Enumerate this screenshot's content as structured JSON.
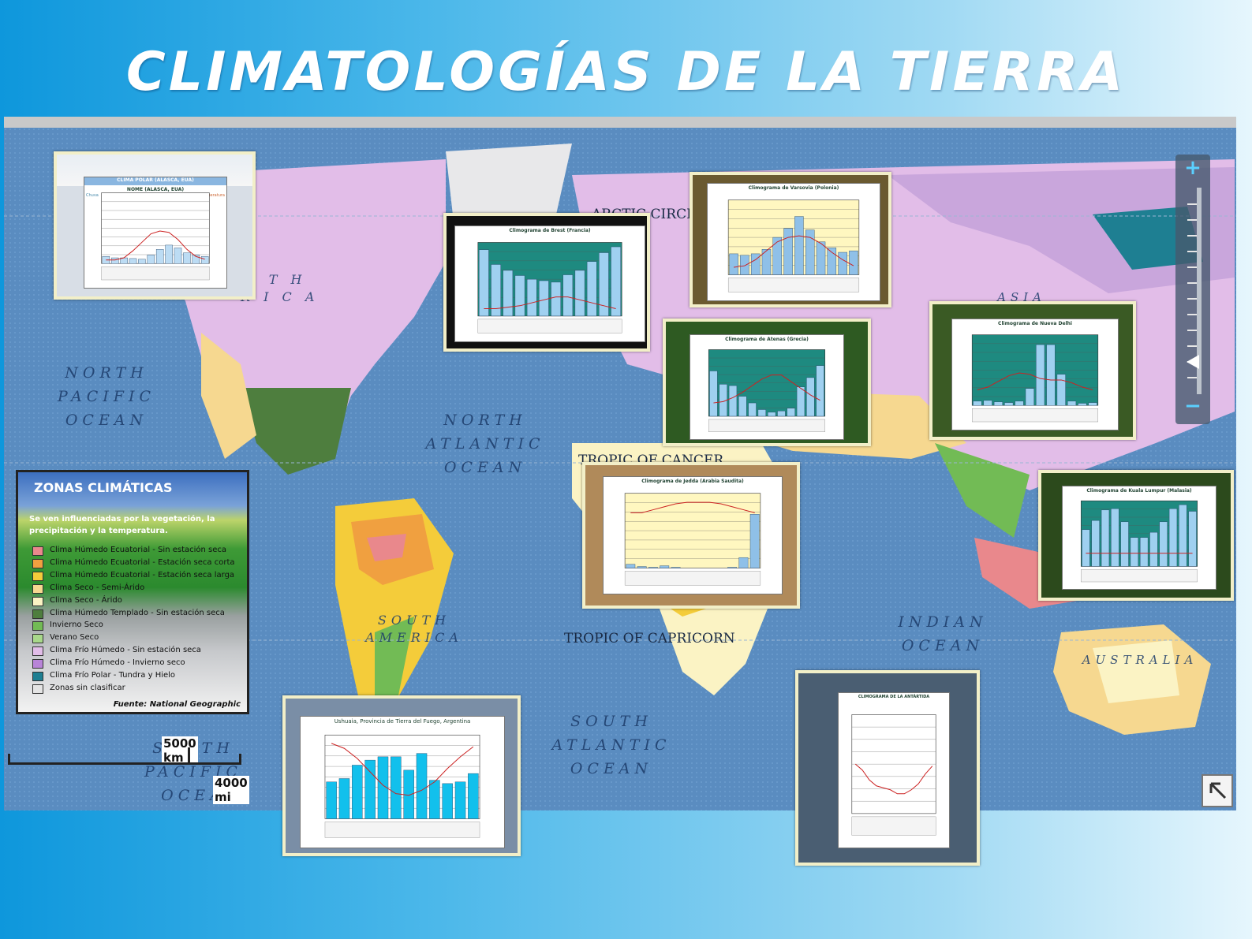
{
  "page": {
    "title": "CLIMATOLOGÍAS DE LA TIERRA"
  },
  "map": {
    "labels": {
      "north_pacific": "NORTH\nPACIFIC\nOCEAN",
      "north_atlantic": "NORTH\nATLANTIC\nOCEAN",
      "south_atlantic": "SOUTH\nATLANTIC\nOCEAN",
      "indian": "INDIAN\nOCEAN",
      "south_pacific": "SOUTH\nPACIFIC\nOCEA",
      "australia": "AUSTRALIA",
      "south_america": "SOUTH\nAMERICA",
      "north_america_partial": "R T H\nR I C A",
      "asia": "ASIA"
    },
    "lines": {
      "arctic": "ARCTIC CIRCLE",
      "cancer": "TROPIC OF CANCER",
      "capricorn": "TROPIC OF CAPRICORN"
    },
    "scale": {
      "km": "5000 km",
      "mi": "4000 mi"
    }
  },
  "legend": {
    "title": "ZONAS CLIMÁTICAS",
    "subtitle": "Se ven influenciadas por la vegetación, la precipitación y la temperatura.",
    "items": [
      {
        "label": "Clima Húmedo Ecuatorial - Sin estación seca",
        "color": "#e9888c"
      },
      {
        "label": "Clima Húmedo Ecuatorial - Estación seca corta",
        "color": "#f0a040"
      },
      {
        "label": "Clima Húmedo Ecuatorial - Estación seca larga",
        "color": "#f4cc3a"
      },
      {
        "label": "Clima Seco - Semi-Árido",
        "color": "#f6d890"
      },
      {
        "label": "Clima Seco - Árido",
        "color": "#fbf3c4"
      },
      {
        "label": "Clima Húmedo Templado - Sin estación seca",
        "color": "#4e7e3e"
      },
      {
        "label": "Invierno Seco",
        "color": "#72bb55"
      },
      {
        "label": "Verano Seco",
        "color": "#a8d88a"
      },
      {
        "label": "Clima Frío Húmedo - Sin estación seca",
        "color": "#e2bde8"
      },
      {
        "label": "Clima Frío Húmedo - Invierno seco",
        "color": "#b884d8"
      },
      {
        "label": "Clima Frío Polar - Tundra y Hielo",
        "color": "#1e7f92"
      },
      {
        "label": "Zonas sin clasificar",
        "color": "#e4e4e4"
      }
    ],
    "source": "Fuente: National Geographic"
  },
  "climographs": [
    {
      "id": "polar",
      "title": "NOME (ALASCA, EUA)",
      "header": "CLIMA POLAR (ALASCA, EUA)",
      "left_label": "Chuva",
      "right_label": "Temperatura",
      "months": [
        "J",
        "F",
        "M",
        "A",
        "M",
        "J",
        "J",
        "A",
        "S",
        "O",
        "N",
        "D"
      ]
    },
    {
      "id": "brest",
      "title": "Climograma de Brest (Francia)",
      "y_left": "P mm",
      "y_right": "T°C"
    },
    {
      "id": "varsovia",
      "title": "Climograma de Varsovia (Polonia)",
      "y_left": "P mm",
      "y_right": "T°C"
    },
    {
      "id": "atenas",
      "title": "Climograma de Atenas (Grecia)",
      "y_left": "P mm",
      "y_right": "T°C"
    },
    {
      "id": "delhi",
      "title": "Climograma de Nueva Delhi",
      "y_left": "P mm",
      "y_right": "T°C"
    },
    {
      "id": "jedda",
      "title": "Climograma de Jedda (Arabia Saudita)",
      "y_left": "P mm",
      "y_right": "T°C"
    },
    {
      "id": "kuala",
      "title": "Climograma de Kuala Lumpur (Malasia)",
      "y_left": "P mm",
      "y_right": "T°C"
    },
    {
      "id": "ushuaia",
      "title": "Ushuaia, Provincia de Tierra del Fuego, Argentina"
    },
    {
      "id": "antartida",
      "title": "CLIMOGRAMA DE LA ANTÁRTIDA"
    }
  ],
  "colors": {
    "ocean": "#5b8ec0",
    "land_pink": "#e2bde8",
    "tundra": "#1e7f92"
  },
  "icons": {
    "zoom_in": "plus-icon",
    "zoom_out": "minus-icon",
    "corner": "arrow-up-left-icon"
  }
}
